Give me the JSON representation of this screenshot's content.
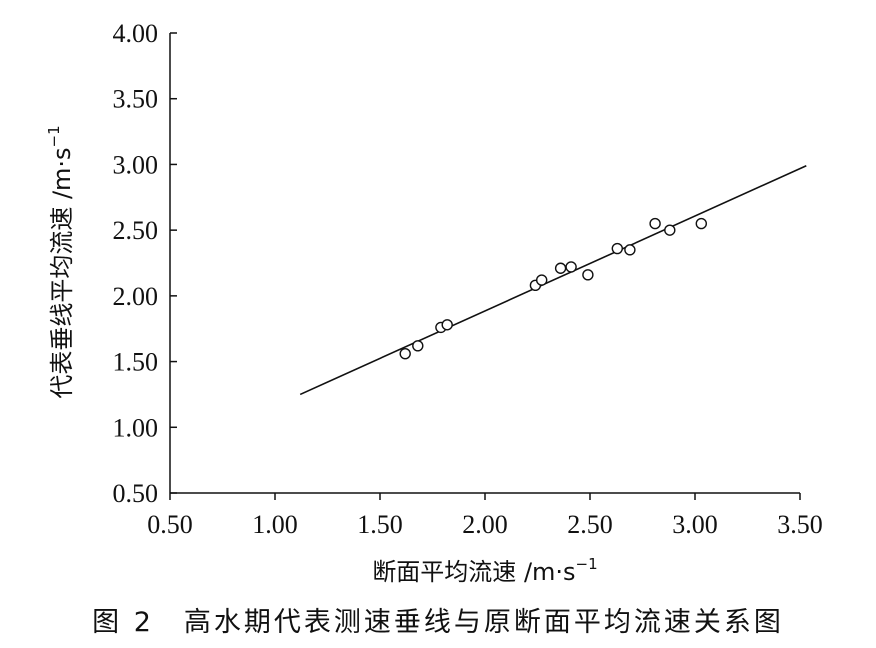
{
  "chart_data": {
    "type": "scatter",
    "xlabel": "断面平均流速 /m·s",
    "xlabel_exp": "−1",
    "ylabel": "代表垂线平均流速 /m·s",
    "ylabel_exp": "−1",
    "xlim": [
      0.5,
      3.5
    ],
    "ylim": [
      0.5,
      4.0
    ],
    "xticks": [
      "0.50",
      "1.00",
      "1.50",
      "2.00",
      "2.50",
      "3.00",
      "3.50"
    ],
    "yticks": [
      "0.50",
      "1.00",
      "1.50",
      "2.00",
      "2.50",
      "3.00",
      "3.50",
      "4.00"
    ],
    "grid": false,
    "points": [
      {
        "x": 1.62,
        "y": 1.56
      },
      {
        "x": 1.68,
        "y": 1.62
      },
      {
        "x": 1.79,
        "y": 1.76
      },
      {
        "x": 1.82,
        "y": 1.78
      },
      {
        "x": 2.24,
        "y": 2.08
      },
      {
        "x": 2.27,
        "y": 2.12
      },
      {
        "x": 2.36,
        "y": 2.21
      },
      {
        "x": 2.41,
        "y": 2.22
      },
      {
        "x": 2.49,
        "y": 2.16
      },
      {
        "x": 2.63,
        "y": 2.36
      },
      {
        "x": 2.69,
        "y": 2.35
      },
      {
        "x": 2.81,
        "y": 2.55
      },
      {
        "x": 2.88,
        "y": 2.5
      },
      {
        "x": 3.03,
        "y": 2.55
      }
    ],
    "fit_line": {
      "x1": 1.12,
      "y1": 1.25,
      "x2": 3.53,
      "y2": 2.99
    }
  },
  "caption": "图 2　高水期代表测速垂线与原断面平均流速关系图"
}
